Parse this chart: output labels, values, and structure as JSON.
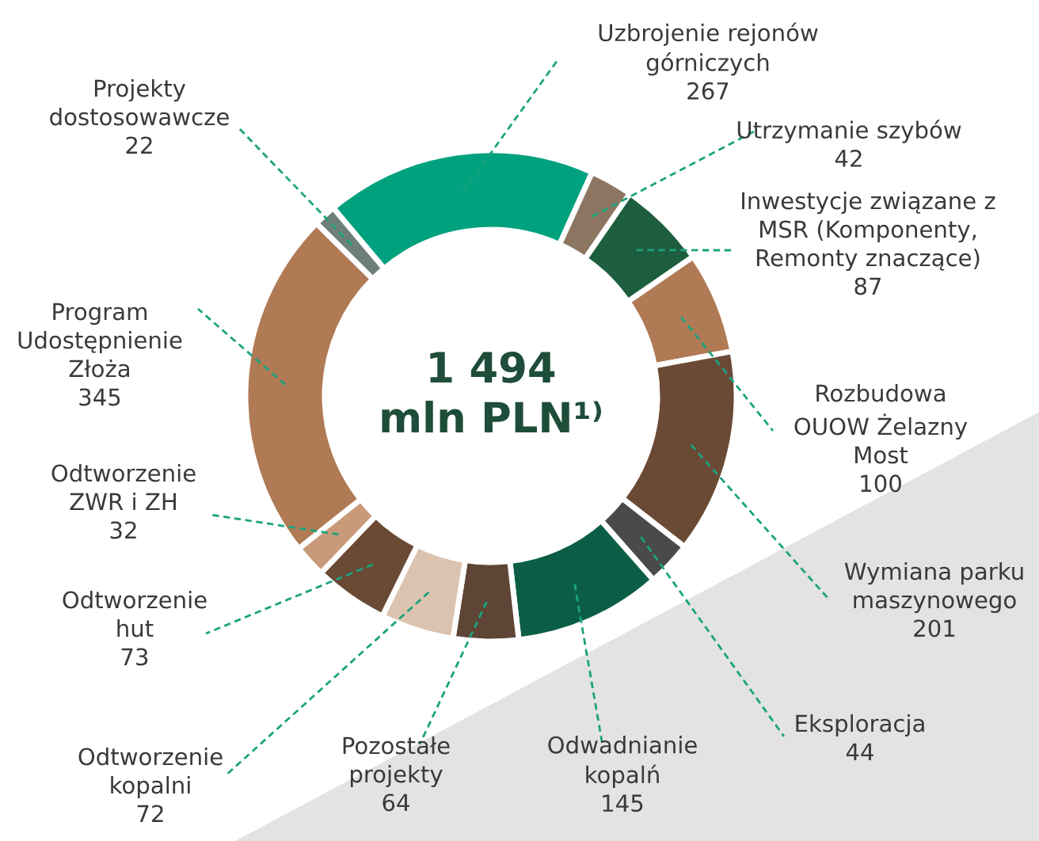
{
  "chart_data": {
    "type": "donut",
    "categories": [
      "Uzbrojenie rejonów\ngórniczych",
      "Utrzymanie szybów",
      "Inwestycje związane z\nMSR (Komponenty,\nRemonty znaczące)",
      "Rozbudowa\nOUOW Żelazny\nMost",
      "Wymiana parku\nmaszynowego",
      "Eksploracja",
      "Odwadnianie\nkopalń",
      "Pozostałe\nprojekty",
      "Odtworzenie\nkopalni",
      "Odtworzenie\nhut",
      "Odtworzenie\nZWR i ZH",
      "Program\nUdostępnienie\nZłoża",
      "Projekty\ndostosowawcze"
    ],
    "values": [
      267,
      42,
      87,
      100,
      201,
      44,
      145,
      64,
      72,
      73,
      32,
      345,
      22
    ],
    "colors": [
      "#00a17e",
      "#8c7662",
      "#1d5e3e",
      "#b07a55",
      "#6b4a35",
      "#4a4a4a",
      "#0b5e45",
      "#5e4535",
      "#dcc3b0",
      "#6b4a35",
      "#c99a7a",
      "#b07a55",
      "#6e7f7a"
    ],
    "data_labels": true,
    "annotations": [
      "1 494\nmln PLN¹⁾"
    ]
  }
}
